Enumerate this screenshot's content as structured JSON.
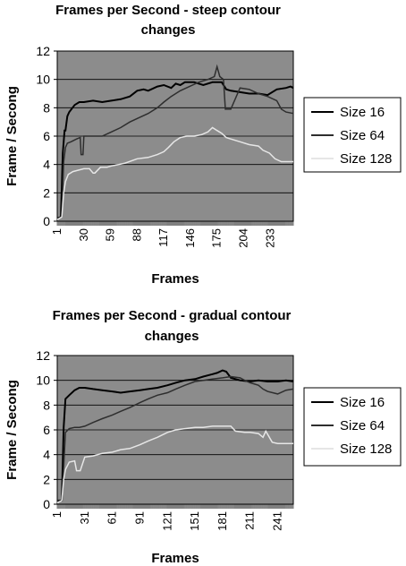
{
  "chart_data": [
    {
      "type": "line",
      "title": "Frames per Second - steep contour changes",
      "title_lines": [
        "Frames per Second - steep contour",
        "changes"
      ],
      "xlabel": "Frames",
      "ylabel": "Frame / Secong",
      "xlim": [
        1,
        258
      ],
      "ylim": [
        0,
        12
      ],
      "yticks": [
        0,
        2,
        4,
        6,
        8,
        10,
        12
      ],
      "xticks": [
        1,
        30,
        59,
        88,
        117,
        146,
        175,
        204,
        233
      ],
      "grid": true,
      "legend_position": "right",
      "background": "#8c8c8c",
      "series": [
        {
          "name": "Size 16",
          "color": "#000000",
          "x": [
            1,
            5,
            7,
            9,
            10,
            12,
            14,
            20,
            25,
            30,
            40,
            50,
            60,
            70,
            80,
            88,
            95,
            100,
            110,
            117,
            125,
            130,
            135,
            140,
            150,
            160,
            170,
            180,
            185,
            190,
            200,
            210,
            220,
            230,
            240,
            250,
            255,
            258
          ],
          "y": [
            0.2,
            0.3,
            4.8,
            6.4,
            6.4,
            7.4,
            7.7,
            8.2,
            8.4,
            8.4,
            8.5,
            8.4,
            8.5,
            8.6,
            8.8,
            9.2,
            9.3,
            9.2,
            9.5,
            9.6,
            9.4,
            9.7,
            9.6,
            9.8,
            9.8,
            9.6,
            9.8,
            9.8,
            9.3,
            9.2,
            9.1,
            9.0,
            9.0,
            8.9,
            9.3,
            9.4,
            9.5,
            9.4
          ]
        },
        {
          "name": "Size 64",
          "color": "#2e2e2e",
          "x": [
            1,
            6,
            8,
            10,
            12,
            16,
            22,
            26,
            27,
            29,
            30,
            35,
            40,
            50,
            60,
            70,
            80,
            90,
            100,
            110,
            117,
            125,
            135,
            145,
            155,
            165,
            172,
            175,
            178,
            182,
            184,
            190,
            200,
            210,
            220,
            230,
            240,
            245,
            250,
            258
          ],
          "y": [
            0.2,
            0.3,
            4.2,
            5.2,
            5.5,
            5.6,
            5.8,
            5.9,
            4.7,
            4.7,
            6.0,
            6.0,
            6.0,
            6.0,
            6.3,
            6.6,
            7.0,
            7.3,
            7.6,
            8.0,
            8.4,
            8.8,
            9.2,
            9.5,
            9.8,
            10.0,
            10.2,
            10.9,
            10.2,
            10.0,
            7.9,
            7.9,
            9.4,
            9.3,
            9.0,
            8.8,
            8.5,
            7.9,
            7.7,
            7.6
          ]
        },
        {
          "name": "Size 128",
          "color": "#e6e6e6",
          "x": [
            1,
            6,
            8,
            10,
            13,
            18,
            24,
            30,
            36,
            40,
            42,
            48,
            55,
            60,
            68,
            75,
            88,
            100,
            110,
            117,
            122,
            128,
            135,
            142,
            150,
            158,
            165,
            170,
            175,
            180,
            185,
            190,
            200,
            210,
            220,
            225,
            232,
            238,
            245,
            250,
            258
          ],
          "y": [
            0.1,
            0.3,
            2.0,
            2.8,
            3.3,
            3.5,
            3.6,
            3.7,
            3.7,
            3.4,
            3.4,
            3.8,
            3.8,
            3.9,
            4.0,
            4.1,
            4.4,
            4.5,
            4.7,
            4.9,
            5.2,
            5.6,
            5.9,
            6.0,
            6.0,
            6.1,
            6.3,
            6.6,
            6.4,
            6.2,
            5.9,
            5.8,
            5.6,
            5.4,
            5.3,
            5.0,
            4.8,
            4.4,
            4.2,
            4.2,
            4.2
          ]
        }
      ]
    },
    {
      "type": "line",
      "title": "Frames per Second - gradual contour changes",
      "title_lines": [
        "Frames per Second - gradual contour",
        "changes"
      ],
      "xlabel": "Frames",
      "ylabel": "Frame / Secong",
      "xlim": [
        1,
        258
      ],
      "ylim": [
        0,
        12
      ],
      "yticks": [
        0,
        2,
        4,
        6,
        8,
        10,
        12
      ],
      "xticks": [
        1,
        31,
        61,
        91,
        121,
        151,
        181,
        211,
        241
      ],
      "grid": true,
      "legend_position": "right",
      "background": "#8c8c8c",
      "series": [
        {
          "name": "Size 16",
          "color": "#000000",
          "x": [
            1,
            6,
            8,
            10,
            14,
            20,
            25,
            31,
            40,
            50,
            61,
            70,
            80,
            91,
            100,
            110,
            121,
            130,
            140,
            151,
            160,
            170,
            175,
            181,
            185,
            190,
            200,
            211,
            220,
            230,
            241,
            250,
            258
          ],
          "y": [
            0.3,
            0.3,
            6.2,
            8.5,
            8.8,
            9.2,
            9.4,
            9.4,
            9.3,
            9.2,
            9.1,
            9.0,
            9.1,
            9.2,
            9.3,
            9.4,
            9.6,
            9.8,
            10.0,
            10.1,
            10.3,
            10.5,
            10.6,
            10.8,
            10.7,
            10.2,
            10.0,
            9.9,
            10.0,
            9.9,
            9.9,
            10.0,
            9.9
          ]
        },
        {
          "name": "Size 64",
          "color": "#2e2e2e",
          "x": [
            1,
            6,
            8,
            10,
            14,
            20,
            25,
            31,
            40,
            50,
            61,
            70,
            80,
            91,
            100,
            110,
            121,
            130,
            140,
            151,
            160,
            170,
            181,
            190,
            200,
            205,
            211,
            220,
            225,
            230,
            241,
            250,
            258
          ],
          "y": [
            0.3,
            0.3,
            3.0,
            5.8,
            6.1,
            6.2,
            6.2,
            6.3,
            6.6,
            6.9,
            7.2,
            7.5,
            7.8,
            8.2,
            8.5,
            8.8,
            9.0,
            9.3,
            9.6,
            9.9,
            10.0,
            10.1,
            10.2,
            10.3,
            10.2,
            10.0,
            9.8,
            9.6,
            9.3,
            9.1,
            8.9,
            9.2,
            9.3
          ]
        },
        {
          "name": "Size 128",
          "color": "#e6e6e6",
          "x": [
            1,
            6,
            8,
            10,
            14,
            20,
            22,
            26,
            31,
            40,
            50,
            61,
            70,
            80,
            91,
            100,
            110,
            121,
            130,
            140,
            151,
            160,
            170,
            181,
            190,
            195,
            205,
            211,
            220,
            225,
            228,
            235,
            241,
            250,
            258
          ],
          "y": [
            0.1,
            0.3,
            2.0,
            2.8,
            3.4,
            3.5,
            2.7,
            2.7,
            3.8,
            3.9,
            4.1,
            4.2,
            4.4,
            4.5,
            4.8,
            5.1,
            5.4,
            5.8,
            6.0,
            6.1,
            6.2,
            6.2,
            6.3,
            6.3,
            6.3,
            5.9,
            5.8,
            5.8,
            5.7,
            5.4,
            5.9,
            5.0,
            4.9,
            4.9,
            4.9
          ]
        }
      ]
    }
  ]
}
